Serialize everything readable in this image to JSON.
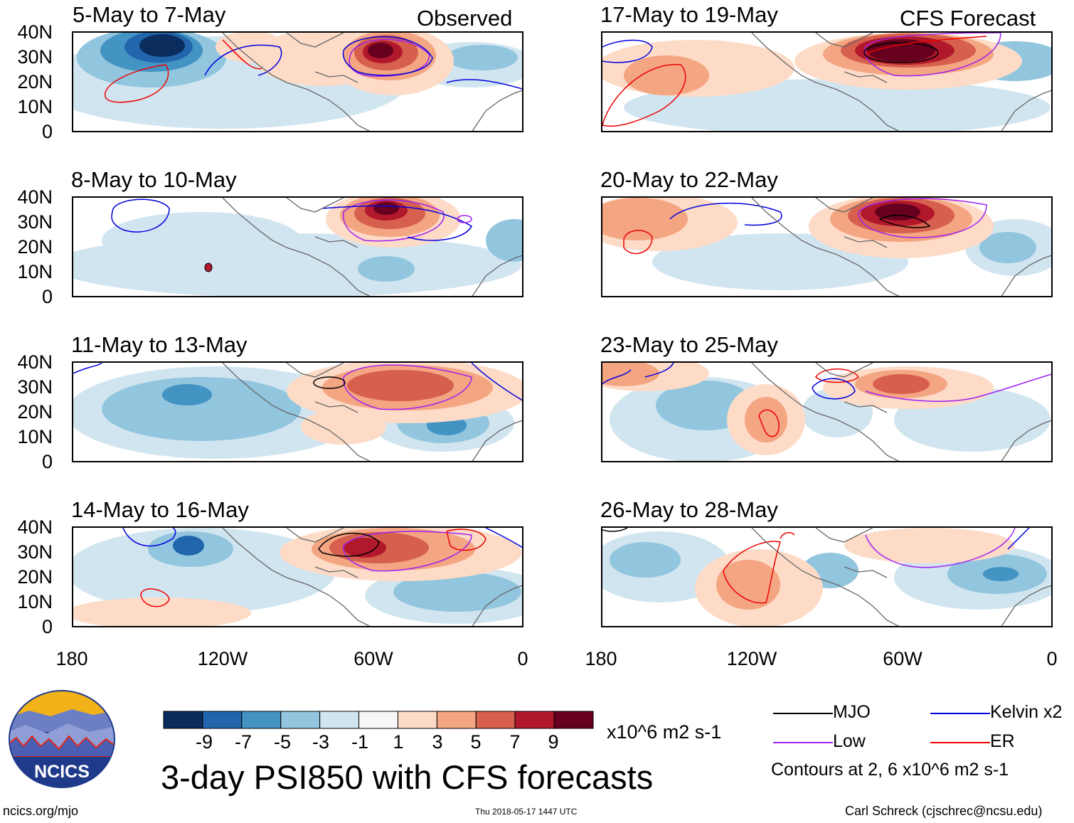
{
  "left_tag": "Observed",
  "right_tag": "CFS Forecast",
  "panels_left": [
    "5-May to 7-May",
    "8-May to 10-May",
    "11-May to 13-May",
    "14-May to 16-May"
  ],
  "panels_right": [
    "17-May to 19-May",
    "20-May to 22-May",
    "23-May to 25-May",
    "26-May to 28-May"
  ],
  "lat_ticks": [
    "40N",
    "30N",
    "20N",
    "10N",
    "0"
  ],
  "lon_ticks": [
    "180",
    "120W",
    "60W",
    "0"
  ],
  "colorbar": {
    "labels": [
      "-9",
      "-7",
      "-5",
      "-3",
      "-1",
      "1",
      "3",
      "5",
      "7",
      "9"
    ],
    "colors": [
      "#0b2d5e",
      "#2166ac",
      "#4393c3",
      "#92c5de",
      "#d1e5f0",
      "#f7f7f7",
      "#fddbc7",
      "#f4a582",
      "#d6604d",
      "#b2182b",
      "#67001f"
    ],
    "units": "x10^6 m2 s-1"
  },
  "main_title": "3-day PSI850 with CFS forecasts",
  "legend": {
    "items": [
      {
        "label": "MJO",
        "color": "#000000"
      },
      {
        "label": "Kelvin x2",
        "color": "#0000dd"
      },
      {
        "label": "Low",
        "color": "#a020f0"
      },
      {
        "label": "ER",
        "color": "#ee0000"
      }
    ],
    "note": "Contours at 2, 6 x10^6 m2 s-1"
  },
  "logo_text": "NCICS",
  "footer": {
    "site": "ncics.org/mjo",
    "timestamp": "Thu 2018-05-17 1447 UTC",
    "author": "Carl Schreck (cjschrec@ncsu.edu)"
  }
}
